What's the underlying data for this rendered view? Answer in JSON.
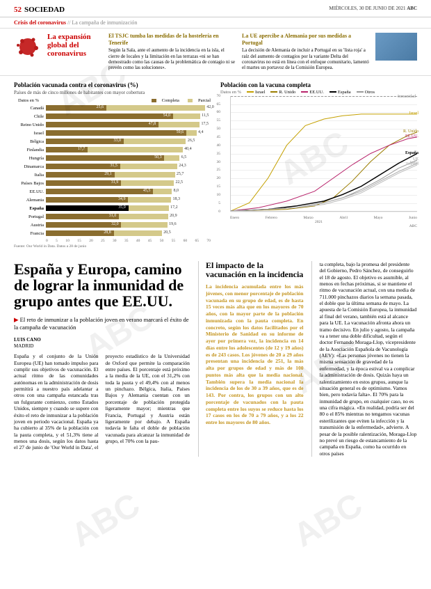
{
  "header": {
    "page": "52",
    "section": "SOCIEDAD",
    "date": "MIÉRCOLES, 30 DE JUNIO DE 2021",
    "pub": "ABC"
  },
  "subhead": {
    "red": "Crisis del coronavirus",
    "gray": " // La campaña de inmunización"
  },
  "infobox": {
    "title": "La expansión global del coronavirus",
    "box1": {
      "title": "El TSJC tumba las medidas de la hostelería en Tenerife",
      "text": "Según la Sala, ante el aumento de la incidencia en la isla, el cierre de locales y la limitación en las terrazas «ni se han demostrado como las causas de la problemática de contagio ni se prevén como las soluciones»."
    },
    "box2": {
      "title": "La UE apercibe a Alemania por sus medidas a Portugal",
      "text": "La decisión de Alemania de incluir a Portugal en su 'lista roja' a raíz del aumento de contagios por la variante Delta del coronavirus no está en línea con el enfoque comunitario, lamentó el martes un portavoz de la Comisión Europea."
    }
  },
  "barChart": {
    "title": "Población vacunada contra el coronavirus (%)",
    "sub": "Países de más de cinco millones de habitantes con mayor cobertura",
    "unit": "Datos en %",
    "legend_complete": "Completa",
    "legend_partial": "Parcial",
    "color_complete": "#8a6d2f",
    "color_partial": "#d4c98a",
    "color_spain": "#000",
    "rows": [
      {
        "country": "Canadá",
        "complete": 25.6,
        "partial": 42.0
      },
      {
        "country": "Chile",
        "complete": 54.0,
        "partial": 11.5
      },
      {
        "country": "Reino Unido",
        "complete": 47.8,
        "partial": 17.5
      },
      {
        "country": "Israel",
        "complete": 59.6,
        "partial": 4.4
      },
      {
        "country": "Bélgica",
        "complete": 33.0,
        "partial": 26.5
      },
      {
        "country": "Finlandia",
        "complete": 17.7,
        "partial": 40.4
      },
      {
        "country": "Hungría",
        "complete": 50.3,
        "partial": 6.5
      },
      {
        "country": "Dinamarca",
        "complete": 31.5,
        "partial": 24.3
      },
      {
        "country": "Italia",
        "complete": 29.1,
        "partial": 25.7
      },
      {
        "country": "Países Bajos",
        "complete": 31.9,
        "partial": 22.5
      },
      {
        "country": "EE.UU.",
        "complete": 45.5,
        "partial": 8.0
      },
      {
        "country": "Alemania",
        "complete": 34.9,
        "partial": 18.3
      },
      {
        "country": "España",
        "complete": 35.0,
        "partial": 17.2,
        "highlight": true
      },
      {
        "country": "Portugal",
        "complete": 31.0,
        "partial": 20.9
      },
      {
        "country": "Austria",
        "complete": 32.0,
        "partial": 19.6
      },
      {
        "country": "Francia",
        "complete": 28.8,
        "partial": 20.5
      }
    ],
    "xmax": 70,
    "ticks": [
      0,
      5,
      10,
      15,
      20,
      25,
      30,
      35,
      40,
      45,
      50,
      55,
      60,
      65,
      70
    ],
    "source": "Fuente: Our World in Data. Datos a 28 de junio"
  },
  "lineChart": {
    "title": "Población con la vacuna completa",
    "unit": "Datos en %",
    "ymax": 70,
    "yticks": [
      0,
      5,
      10,
      15,
      20,
      25,
      30,
      35,
      40,
      45,
      50,
      55,
      60,
      65,
      70
    ],
    "xlabels": [
      "Enero",
      "Febrero",
      "Marzo",
      "Abril",
      "Mayo",
      "Junio"
    ],
    "xyear": "2021",
    "immunity_label": "Inmunidad",
    "series": [
      {
        "name": "Israel",
        "color": "#c4a000",
        "label_y": 59,
        "data": [
          [
            0,
            0
          ],
          [
            10,
            5
          ],
          [
            20,
            20
          ],
          [
            30,
            40
          ],
          [
            40,
            52
          ],
          [
            50,
            56
          ],
          [
            60,
            58
          ],
          [
            70,
            59
          ],
          [
            80,
            59
          ],
          [
            90,
            59
          ],
          [
            100,
            59
          ]
        ]
      },
      {
        "name": "R. Unido",
        "color": "#9b7d00",
        "label_y": 48,
        "data": [
          [
            0,
            0
          ],
          [
            15,
            0.5
          ],
          [
            30,
            1
          ],
          [
            45,
            3
          ],
          [
            55,
            8
          ],
          [
            65,
            18
          ],
          [
            75,
            30
          ],
          [
            85,
            40
          ],
          [
            95,
            46
          ],
          [
            100,
            48
          ]
        ]
      },
      {
        "name": "EE.UU.",
        "color": "#b8236b",
        "label_y": 45,
        "data": [
          [
            0,
            0
          ],
          [
            15,
            2
          ],
          [
            30,
            6
          ],
          [
            45,
            12
          ],
          [
            55,
            20
          ],
          [
            65,
            28
          ],
          [
            75,
            35
          ],
          [
            85,
            40
          ],
          [
            95,
            44
          ],
          [
            100,
            45
          ]
        ]
      },
      {
        "name": "España",
        "color": "#000",
        "label_y": 35,
        "bold": true,
        "data": [
          [
            0,
            0
          ],
          [
            20,
            1
          ],
          [
            35,
            3
          ],
          [
            50,
            6
          ],
          [
            60,
            10
          ],
          [
            70,
            15
          ],
          [
            80,
            22
          ],
          [
            90,
            29
          ],
          [
            100,
            35
          ]
        ]
      },
      {
        "name": "UE",
        "color": "#999",
        "label_y": 31,
        "data": [
          [
            0,
            0
          ],
          [
            20,
            1
          ],
          [
            35,
            2
          ],
          [
            50,
            5
          ],
          [
            60,
            8
          ],
          [
            70,
            13
          ],
          [
            80,
            19
          ],
          [
            90,
            26
          ],
          [
            100,
            31
          ]
        ]
      },
      {
        "name": "Italia",
        "color": "#aaa",
        "label_y": 29,
        "data": [
          [
            0,
            0
          ],
          [
            20,
            1
          ],
          [
            35,
            2
          ],
          [
            50,
            5
          ],
          [
            60,
            8
          ],
          [
            70,
            12
          ],
          [
            80,
            18
          ],
          [
            90,
            24
          ],
          [
            100,
            29
          ]
        ]
      },
      {
        "name": "Francia",
        "color": "#bbb",
        "label_y": 28,
        "data": [
          [
            0,
            0
          ],
          [
            20,
            1
          ],
          [
            35,
            2
          ],
          [
            50,
            4
          ],
          [
            60,
            7
          ],
          [
            70,
            11
          ],
          [
            80,
            17
          ],
          [
            90,
            23
          ],
          [
            100,
            28
          ]
        ]
      }
    ],
    "legend": [
      "Israel",
      "R. Unido",
      "EE.UU.",
      "España",
      "Otros"
    ],
    "legend_colors": [
      "#c4a000",
      "#9b7d00",
      "#b8236b",
      "#000",
      "#999"
    ],
    "source": "ABC"
  },
  "article": {
    "headline": "España y Europa, camino de lograr la inmunidad de grupo antes que EE.UU.",
    "kicker": "El reto de inmunizar a la población joven en verano marcará el éxito de la campaña de vacunación",
    "byline": "LUIS CANO",
    "loc": "MADRID",
    "body": "España y el conjunto de la Unión Europea (UE) han tomado impulso para cumplir sus objetivos de vacunación. El actual ritmo de las comunidades autónomas en la administración de dosis permitirá a nuestro país adelantar a otros con una campaña estancada tras un fulgurante comienzo, como Estados Unidos, siempre y cuando se supere con éxito el reto de inmunizar a la población joven en periodo vacacional. España ya ha cubierto al 35% de la población con la pauta completa, y el 51,3% tiene al menos una dosis, según los datos hasta el 27 de junio de 'Our World in Data', el proyecto estadístico de la Universidad de Oxford que permite la comparación entre países. El porcentaje está próximo a la media de la UE, con el 31,2% con toda la pauta y el 49,4% con al menos un pinchazo. Bélgica, Italia, Países Bajos y Alemania cuentan con un porcentaje de población protegida ligeramente mayor; mientras que Francia, Portugal y Austria están ligeramente por debajo. A España todavía le falta el doble de población vacunada para alcanzar la inmunidad de grupo, el 70% con la pau-"
  },
  "sidebar": {
    "title": "El impacto de la vacunación en la incidencia",
    "text": "La incidencia acumulada entre los más jóvenes, con menor porcentaje de población vacunada en su grupo de edad, es de hasta 15 veces más alta que en los mayores de 70 años, con la mayor parte de la población inmunizada con la pauta completa. En concreto, según los datos facilitados por el Ministerio de Sanidad en su informe de ayer por primera vez, la incidencia en 14 días entre los adolescentes (de 12 y 19 años) es de 243 casos. Los jóvenes de 20 a 29 años presentan una incidencia de 251, la más alta por grupos de edad y más de 100 puntos más alta que la media nacional. También supera la media nacional la incidencia de los de 30 a 39 años, que es de 143. Por contra, los grupos con un alto porcentaje de vacunados con la pauta completa entre los suyos se reduce hasta los 17 casos en los de 70 a 79 años, y a los 22 entre los mayores de 80 años."
  },
  "col3": "ta completa, bajo la promesa del presidente del Gobierno, Pedro Sánchez, de conseguirlo el 18 de agosto. El objetivo es asumible, al menos en fechas próximas, si se mantiene el ritmo de vacunación actual, con una media de 711.000 pinchazos diarios la semana pasada, el doble que la última semana de mayo. La apuesta de la Comisión Europea, la inmunidad al final del verano, también está al alcance para la UE. La vacunación afronta ahora un tramo decisivo. En julio y agosto, la campaña va a tener una doble dificultad, según el doctor Fernando Moraga-Llop, vicepresidente de la Asociación Española de Vacunología (AEV): «Las personas jóvenes no tienen la misma sensación de gravedad de la enfermedad, y la época estival va a complicar la administración de dosis. Quizás haya un ralentizamiento en estos grupos, aunque la situación general es de optimismo. Vamos bien, pero todavía falta». El 70% para la inmunidad de grupo, en cualquier caso, no es una cifra mágica. «En realidad, podría ser del 80 o el 85% mientras no tengamos vacunas esterilizantes que eviten la infección y la transmisión de la enfermedad», advierte. A pesar de la posible ralentización, Moraga-Llop no prevé un riesgo de estancamiento de la campaña en España, como ha ocurrido en otros países"
}
